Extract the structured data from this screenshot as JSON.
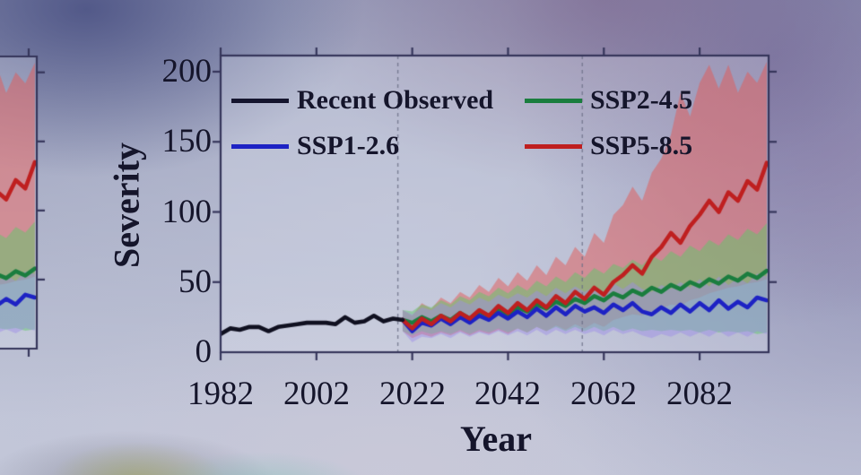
{
  "figure": {
    "y_axis_title": "Severity",
    "x_axis_title": "Year",
    "y_tick_labels": [
      "200",
      "150",
      "100",
      "50",
      "0"
    ],
    "x_tick_labels": [
      "1982",
      "2002",
      "2022",
      "2042",
      "2062",
      "2082"
    ]
  },
  "legend": {
    "items": [
      {
        "label": "Recent Observed",
        "color": "#15152e"
      },
      {
        "label": "SSP1-2.6",
        "color": "#1d22c4"
      },
      {
        "label": "SSP2-4.5",
        "color": "#1a7d3e"
      },
      {
        "label": "SSP5-8.5",
        "color": "#bf1f1f"
      }
    ]
  },
  "chart_data": {
    "type": "line",
    "title": "",
    "xlabel": "Year",
    "ylabel": "Severity",
    "xlim": [
      1982,
      2096.4
    ],
    "ylim": [
      0,
      211.5
    ],
    "x_ticks": [
      1982,
      2002,
      2022,
      2042,
      2062,
      2082
    ],
    "y_ticks": [
      0,
      50,
      100,
      150,
      200
    ],
    "dashed_vlines": [
      2019,
      2057.5
    ],
    "legend_position": "upper-left-inside, two columns, no frame",
    "grid": false,
    "observed": {
      "name": "Recent Observed",
      "color": "#101020",
      "x": [
        1982,
        1984,
        1986,
        1988,
        1990,
        1992,
        1994,
        1996,
        1998,
        2000,
        2002,
        2004,
        2006,
        2008,
        2010,
        2012,
        2014,
        2016,
        2018,
        2020
      ],
      "y": [
        13,
        17,
        16,
        18,
        18,
        15,
        18,
        19,
        20,
        21,
        21,
        21,
        20,
        25,
        21,
        22,
        26,
        22,
        24,
        23
      ]
    },
    "series": [
      {
        "name": "SSP1-2.6",
        "color": "#1d22c4",
        "band_color": "rgba(155,140,232,0.45)",
        "x": [
          2020,
          2022,
          2024,
          2026,
          2028,
          2030,
          2032,
          2034,
          2036,
          2038,
          2040,
          2042,
          2044,
          2046,
          2048,
          2050,
          2052,
          2054,
          2056,
          2058,
          2060,
          2062,
          2064,
          2066,
          2068,
          2070,
          2072,
          2074,
          2076,
          2078,
          2080,
          2082,
          2084,
          2086,
          2088,
          2090,
          2092,
          2094,
          2096
        ],
        "y": [
          23,
          15,
          21,
          19,
          24,
          20,
          25,
          21,
          26,
          23,
          28,
          24,
          29,
          25,
          31,
          26,
          32,
          27,
          33,
          29,
          32,
          28,
          34,
          30,
          35,
          29,
          27,
          32,
          28,
          34,
          29,
          35,
          30,
          37,
          31,
          36,
          32,
          39,
          37
        ],
        "band_upper": [
          30,
          27,
          32,
          30,
          35,
          32,
          37,
          34,
          39,
          36,
          41,
          38,
          42,
          39,
          44,
          40,
          46,
          42,
          47,
          43,
          47,
          43,
          49,
          45,
          50,
          45,
          43,
          48,
          45,
          50,
          46,
          52,
          47,
          54,
          48,
          53,
          49,
          56,
          54
        ],
        "band_lower": [
          15,
          7,
          11,
          10,
          13,
          10,
          14,
          11,
          14,
          12,
          15,
          12,
          15,
          12,
          16,
          12,
          16,
          13,
          16,
          13,
          15,
          12,
          16,
          13,
          15,
          12,
          10,
          13,
          11,
          14,
          11,
          14,
          11,
          15,
          11,
          14,
          11,
          15,
          13
        ]
      },
      {
        "name": "SSP2-4.5",
        "color": "#1a7d3e",
        "band_color": "rgba(95,200,105,0.5)",
        "x": [
          2020,
          2022,
          2024,
          2026,
          2028,
          2030,
          2032,
          2034,
          2036,
          2038,
          2040,
          2042,
          2044,
          2046,
          2048,
          2050,
          2052,
          2054,
          2056,
          2058,
          2060,
          2062,
          2064,
          2066,
          2068,
          2070,
          2072,
          2074,
          2076,
          2078,
          2080,
          2082,
          2084,
          2086,
          2088,
          2090,
          2092,
          2094,
          2096
        ],
        "y": [
          23,
          21,
          25,
          22,
          26,
          23,
          28,
          24,
          29,
          26,
          31,
          27,
          32,
          29,
          34,
          31,
          36,
          33,
          38,
          35,
          40,
          37,
          42,
          39,
          44,
          41,
          46,
          43,
          48,
          45,
          50,
          47,
          52,
          49,
          54,
          51,
          56,
          53,
          58
        ],
        "band_upper": [
          30,
          29,
          34,
          32,
          37,
          34,
          40,
          37,
          43,
          40,
          46,
          42,
          48,
          44,
          51,
          47,
          54,
          50,
          57,
          53,
          60,
          56,
          63,
          60,
          66,
          62,
          69,
          65,
          72,
          68,
          76,
          72,
          80,
          76,
          84,
          80,
          88,
          84,
          92
        ],
        "band_lower": [
          15,
          12,
          15,
          13,
          15,
          13,
          16,
          13,
          16,
          14,
          17,
          14,
          17,
          14,
          18,
          15,
          18,
          15,
          18,
          15,
          18,
          15,
          18,
          15,
          17,
          15,
          16,
          15,
          16,
          15,
          16,
          14,
          16,
          14,
          15,
          14,
          15,
          13,
          14
        ]
      },
      {
        "name": "SSP5-8.5",
        "color": "#bf1f1f",
        "band_color": "rgba(225,90,85,0.5)",
        "x": [
          2020,
          2022,
          2024,
          2026,
          2028,
          2030,
          2032,
          2034,
          2036,
          2038,
          2040,
          2042,
          2044,
          2046,
          2048,
          2050,
          2052,
          2054,
          2056,
          2058,
          2060,
          2062,
          2064,
          2066,
          2068,
          2070,
          2072,
          2074,
          2076,
          2078,
          2080,
          2082,
          2084,
          2086,
          2088,
          2090,
          2092,
          2094,
          2096
        ],
        "y": [
          23,
          17,
          24,
          20,
          26,
          22,
          28,
          24,
          30,
          26,
          33,
          28,
          35,
          30,
          37,
          32,
          40,
          35,
          43,
          38,
          46,
          41,
          50,
          55,
          62,
          56,
          68,
          75,
          85,
          78,
          90,
          98,
          108,
          100,
          114,
          108,
          122,
          116,
          135
        ],
        "band_upper": [
          30,
          26,
          35,
          31,
          39,
          35,
          43,
          39,
          48,
          43,
          53,
          47,
          57,
          51,
          62,
          55,
          68,
          62,
          75,
          68,
          85,
          78,
          98,
          105,
          118,
          108,
          128,
          138,
          155,
          185,
          168,
          192,
          205,
          188,
          205,
          185,
          200,
          192,
          207
        ],
        "band_lower": [
          15,
          10,
          13,
          11,
          14,
          12,
          15,
          12,
          15,
          13,
          16,
          13,
          17,
          14,
          18,
          15,
          19,
          16,
          20,
          17,
          21,
          18,
          23,
          25,
          27,
          26,
          29,
          31,
          34,
          33,
          37,
          39,
          42,
          44,
          46,
          47,
          49,
          50,
          52
        ]
      }
    ],
    "left_partial_panel": {
      "description": "right edge of an adjacent identical panel cropped at screenshot left border",
      "visible_xlim": [
        2088.7,
        2096.4
      ]
    }
  }
}
